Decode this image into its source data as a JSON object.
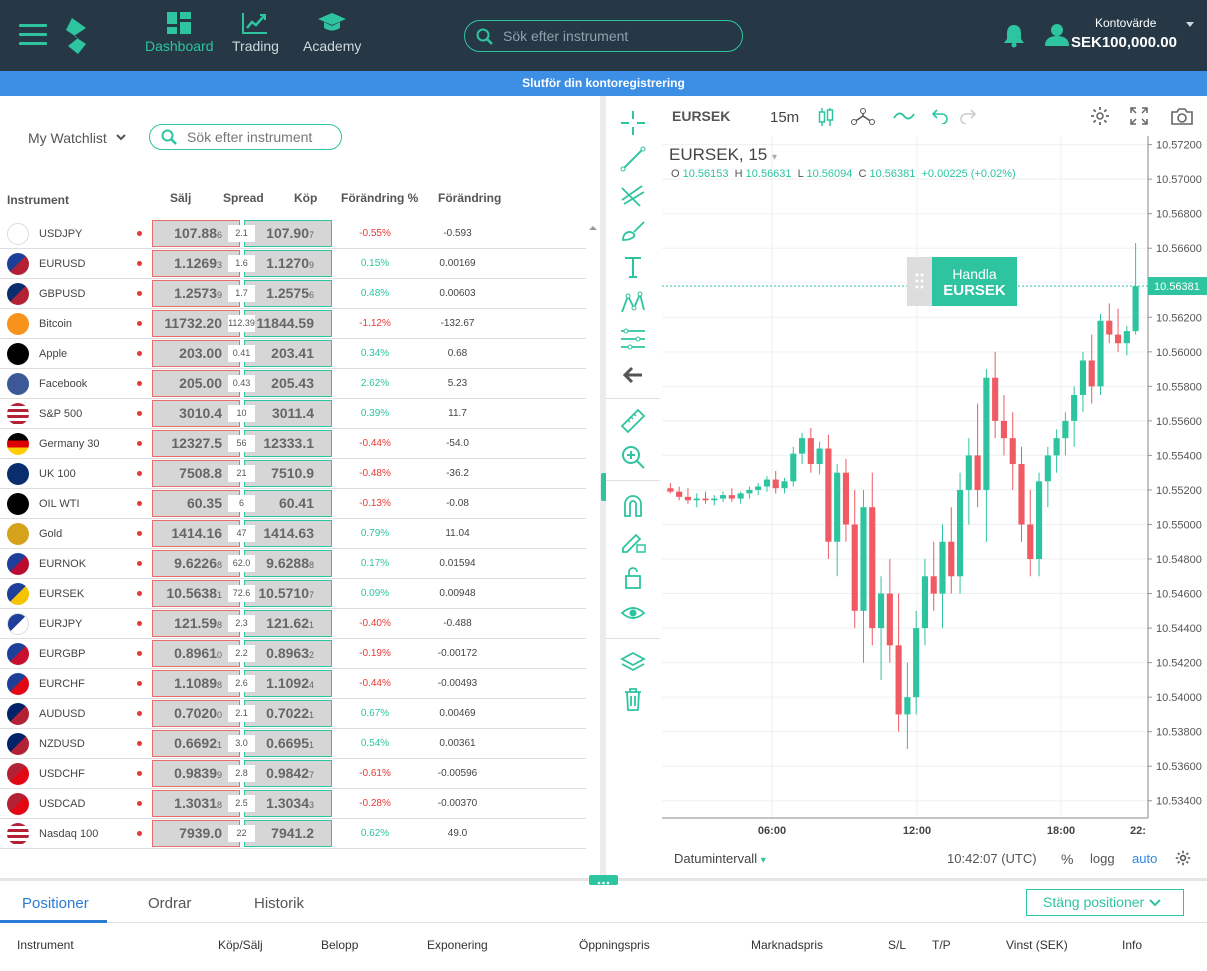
{
  "topbar": {
    "nav": [
      {
        "label": "Dashboard",
        "icon": "dashboard-icon",
        "active": true
      },
      {
        "label": "Trading",
        "icon": "trading-chart-icon",
        "active": false
      },
      {
        "label": "Academy",
        "icon": "graduation-cap-icon",
        "active": false
      }
    ],
    "search_placeholder": "Sök efter instrument",
    "account_label": "Kontovärde",
    "account_value": "SEK100,000.00"
  },
  "banner": "Slutför din kontoregistrering",
  "watchlist": {
    "title": "My Watchlist",
    "search_placeholder": "Sök efter instrument",
    "headers": {
      "instrument": "Instrument",
      "sell": "Sälj",
      "spread": "Spread",
      "buy": "Köp",
      "change_pct": "Förändring %",
      "change": "Förändring"
    },
    "rows": [
      {
        "name": "USDJPY",
        "flag": "japan-flag-icon",
        "sell": "107.88",
        "sell_pip": "6",
        "spread": "2.1",
        "buy": "107.90",
        "buy_pip": "7",
        "pct": "-0.55%",
        "chg": "-0.593",
        "dir": "neg"
      },
      {
        "name": "EURUSD",
        "flag": "eu-us-flag-icon",
        "sell": "1.1269",
        "sell_pip": "3",
        "spread": "1.6",
        "buy": "1.1270",
        "buy_pip": "9",
        "pct": "0.15%",
        "chg": "0.00169",
        "dir": "pos"
      },
      {
        "name": "GBPUSD",
        "flag": "uk-us-flag-icon",
        "sell": "1.2573",
        "sell_pip": "9",
        "spread": "1.7",
        "buy": "1.2575",
        "buy_pip": "6",
        "pct": "0.48%",
        "chg": "0.00603",
        "dir": "pos"
      },
      {
        "name": "Bitcoin",
        "flag": "bitcoin-icon",
        "sell": "11732.20",
        "sell_pip": "",
        "spread": "112.39",
        "buy": "11844.59",
        "buy_pip": "",
        "pct": "-1.12%",
        "chg": "-132.67",
        "dir": "neg"
      },
      {
        "name": "Apple",
        "flag": "apple-icon",
        "sell": "203.00",
        "sell_pip": "",
        "spread": "0.41",
        "buy": "203.41",
        "buy_pip": "",
        "pct": "0.34%",
        "chg": "0.68",
        "dir": "pos"
      },
      {
        "name": "Facebook",
        "flag": "facebook-icon",
        "sell": "205.00",
        "sell_pip": "",
        "spread": "0.43",
        "buy": "205.43",
        "buy_pip": "",
        "pct": "2.62%",
        "chg": "5.23",
        "dir": "pos"
      },
      {
        "name": "S&P 500",
        "flag": "us-flag-500-icon",
        "sell": "3010.4",
        "sell_pip": "",
        "spread": "10",
        "buy": "3011.4",
        "buy_pip": "",
        "pct": "0.39%",
        "chg": "11.7",
        "dir": "pos"
      },
      {
        "name": "Germany 30",
        "flag": "germany-flag-icon",
        "sell": "12327.5",
        "sell_pip": "",
        "spread": "56",
        "buy": "12333.1",
        "buy_pip": "",
        "pct": "-0.44%",
        "chg": "-54.0",
        "dir": "neg"
      },
      {
        "name": "UK 100",
        "flag": "uk-flag-icon",
        "sell": "7508.8",
        "sell_pip": "",
        "spread": "21",
        "buy": "7510.9",
        "buy_pip": "",
        "pct": "-0.48%",
        "chg": "-36.2",
        "dir": "neg"
      },
      {
        "name": "OIL WTI",
        "flag": "oil-drop-icon",
        "sell": "60.35",
        "sell_pip": "",
        "spread": "6",
        "buy": "60.41",
        "buy_pip": "",
        "pct": "-0.13%",
        "chg": "-0.08",
        "dir": "neg"
      },
      {
        "name": "Gold",
        "flag": "gold-bar-icon",
        "sell": "1414.16",
        "sell_pip": "",
        "spread": "47",
        "buy": "1414.63",
        "buy_pip": "",
        "pct": "0.79%",
        "chg": "11.04",
        "dir": "pos"
      },
      {
        "name": "EURNOK",
        "flag": "eu-norway-flag-icon",
        "sell": "9.6226",
        "sell_pip": "8",
        "spread": "62.0",
        "buy": "9.6288",
        "buy_pip": "8",
        "pct": "0.17%",
        "chg": "0.01594",
        "dir": "pos"
      },
      {
        "name": "EURSEK",
        "flag": "eu-sweden-flag-icon",
        "sell": "10.5638",
        "sell_pip": "1",
        "spread": "72.6",
        "buy": "10.5710",
        "buy_pip": "7",
        "pct": "0.09%",
        "chg": "0.00948",
        "dir": "pos"
      },
      {
        "name": "EURJPY",
        "flag": "eu-japan-flag-icon",
        "sell": "121.59",
        "sell_pip": "8",
        "spread": "2.3",
        "buy": "121.62",
        "buy_pip": "1",
        "pct": "-0.40%",
        "chg": "-0.488",
        "dir": "neg"
      },
      {
        "name": "EURGBP",
        "flag": "eu-uk-flag-icon",
        "sell": "0.8961",
        "sell_pip": "0",
        "spread": "2.2",
        "buy": "0.8963",
        "buy_pip": "2",
        "pct": "-0.19%",
        "chg": "-0.00172",
        "dir": "neg"
      },
      {
        "name": "EURCHF",
        "flag": "eu-swiss-flag-icon",
        "sell": "1.1089",
        "sell_pip": "8",
        "spread": "2.6",
        "buy": "1.1092",
        "buy_pip": "4",
        "pct": "-0.44%",
        "chg": "-0.00493",
        "dir": "neg"
      },
      {
        "name": "AUDUSD",
        "flag": "australia-us-flag-icon",
        "sell": "0.7020",
        "sell_pip": "0",
        "spread": "2.1",
        "buy": "0.7022",
        "buy_pip": "1",
        "pct": "0.67%",
        "chg": "0.00469",
        "dir": "pos"
      },
      {
        "name": "NZDUSD",
        "flag": "nz-us-flag-icon",
        "sell": "0.6692",
        "sell_pip": "1",
        "spread": "3.0",
        "buy": "0.6695",
        "buy_pip": "1",
        "pct": "0.54%",
        "chg": "0.00361",
        "dir": "pos"
      },
      {
        "name": "USDCHF",
        "flag": "us-swiss-flag-icon",
        "sell": "0.9839",
        "sell_pip": "9",
        "spread": "2.8",
        "buy": "0.9842",
        "buy_pip": "7",
        "pct": "-0.61%",
        "chg": "-0.00596",
        "dir": "neg"
      },
      {
        "name": "USDCAD",
        "flag": "us-canada-flag-icon",
        "sell": "1.3031",
        "sell_pip": "8",
        "spread": "2.5",
        "buy": "1.3034",
        "buy_pip": "3",
        "pct": "-0.28%",
        "chg": "-0.00370",
        "dir": "neg"
      },
      {
        "name": "Nasdaq 100",
        "flag": "us-flag-100-icon",
        "sell": "7939.0",
        "sell_pip": "",
        "spread": "22",
        "buy": "7941.2",
        "buy_pip": "",
        "pct": "0.62%",
        "chg": "49.0",
        "dir": "pos"
      }
    ]
  },
  "chart": {
    "symbol": "EURSEK",
    "timeframe": "15m",
    "legend_title": "EURSEK, 15",
    "ohlc": {
      "o_label": "O",
      "o": "10.56153",
      "h_label": "H",
      "h": "10.56631",
      "l_label": "L",
      "l": "10.56094",
      "c_label": "C",
      "c": "10.56381",
      "change": "+0.00225 (+0.02%)"
    },
    "trade_button": {
      "line1": "Handla",
      "line2": "EURSEK"
    },
    "current_price_label": "10.56381",
    "y_ticks": [
      "10.57200",
      "10.57000",
      "10.56800",
      "10.56600",
      "10.56400",
      "10.56200",
      "10.56000",
      "10.55800",
      "10.55600",
      "10.55400",
      "10.55200",
      "10.55000",
      "10.54800",
      "10.54600",
      "10.54400",
      "10.54200",
      "10.54000",
      "10.53800",
      "10.53600",
      "10.53400"
    ],
    "x_ticks": [
      "06:00",
      "12:00",
      "18:00",
      "22:"
    ],
    "date_range_label": "Datumintervall",
    "clock": "10:42:07 (UTC)",
    "pct_label": "%",
    "log_label": "logg",
    "auto_label": "auto"
  },
  "chart_data": {
    "type": "candlestick",
    "title": "EURSEK, 15",
    "ylim": [
      10.533,
      10.5725
    ],
    "x_ticks": [
      "06:00",
      "12:00",
      "18:00",
      "22:"
    ],
    "candles_approx": [
      [
        10.5521,
        10.5524,
        10.5518,
        10.5519
      ],
      [
        10.5519,
        10.5522,
        10.5514,
        10.5516
      ],
      [
        10.5516,
        10.5521,
        10.5512,
        10.5514
      ],
      [
        10.5514,
        10.5518,
        10.551,
        10.5515
      ],
      [
        10.5515,
        10.5519,
        10.5512,
        10.5514
      ],
      [
        10.5514,
        10.5517,
        10.5511,
        10.5515
      ],
      [
        10.5515,
        10.5519,
        10.5513,
        10.5517
      ],
      [
        10.5517,
        10.5521,
        10.5513,
        10.5515
      ],
      [
        10.5515,
        10.5519,
        10.5512,
        10.5518
      ],
      [
        10.5518,
        10.5522,
        10.5515,
        10.552
      ],
      [
        10.552,
        10.5524,
        10.5517,
        10.5522
      ],
      [
        10.5522,
        10.5528,
        10.5519,
        10.5526
      ],
      [
        10.5526,
        10.5531,
        10.5518,
        10.5521
      ],
      [
        10.5521,
        10.5527,
        10.5518,
        10.5525
      ],
      [
        10.5525,
        10.5545,
        10.5522,
        10.5541
      ],
      [
        10.5541,
        10.5553,
        10.5535,
        10.555
      ],
      [
        10.555,
        10.5556,
        10.553,
        10.5535
      ],
      [
        10.5535,
        10.5548,
        10.5529,
        10.5544
      ],
      [
        10.5544,
        10.5552,
        10.548,
        10.549
      ],
      [
        10.549,
        10.5535,
        10.547,
        10.553
      ],
      [
        10.553,
        10.5538,
        10.549,
        10.55
      ],
      [
        10.55,
        10.552,
        10.544,
        10.545
      ],
      [
        10.545,
        10.552,
        10.542,
        10.551
      ],
      [
        10.551,
        10.553,
        10.543,
        10.544
      ],
      [
        10.544,
        10.547,
        10.541,
        10.546
      ],
      [
        10.546,
        10.548,
        10.542,
        10.543
      ],
      [
        10.543,
        10.546,
        10.538,
        10.539
      ],
      [
        10.539,
        10.542,
        10.537,
        10.54
      ],
      [
        10.54,
        10.545,
        10.539,
        10.544
      ],
      [
        10.544,
        10.548,
        10.543,
        10.547
      ],
      [
        10.547,
        10.549,
        10.545,
        10.546
      ],
      [
        10.546,
        10.55,
        10.544,
        10.549
      ],
      [
        10.549,
        10.551,
        10.546,
        10.547
      ],
      [
        10.547,
        10.553,
        10.546,
        10.552
      ],
      [
        10.552,
        10.555,
        10.55,
        10.554
      ],
      [
        10.554,
        10.557,
        10.551,
        10.552
      ],
      [
        10.552,
        10.559,
        10.549,
        10.5585
      ],
      [
        10.5585,
        10.56,
        10.555,
        10.556
      ],
      [
        10.556,
        10.5575,
        10.554,
        10.555
      ],
      [
        10.555,
        10.5565,
        10.552,
        10.5535
      ],
      [
        10.5535,
        10.5545,
        10.549,
        10.55
      ],
      [
        10.55,
        10.552,
        10.547,
        10.548
      ],
      [
        10.548,
        10.553,
        10.547,
        10.5525
      ],
      [
        10.5525,
        10.5545,
        10.551,
        10.554
      ],
      [
        10.554,
        10.5555,
        10.553,
        10.555
      ],
      [
        10.555,
        10.5565,
        10.554,
        10.556
      ],
      [
        10.556,
        10.558,
        10.5545,
        10.5575
      ],
      [
        10.5575,
        10.56,
        10.5565,
        10.5595
      ],
      [
        10.5595,
        10.561,
        10.557,
        10.558
      ],
      [
        10.558,
        10.5622,
        10.5575,
        10.5618
      ],
      [
        10.5618,
        10.5628,
        10.5605,
        10.561
      ],
      [
        10.561,
        10.5625,
        10.56,
        10.5605
      ],
      [
        10.5605,
        10.5615,
        10.5598,
        10.5612
      ],
      [
        10.5612,
        10.5663,
        10.561,
        10.5638
      ]
    ]
  },
  "bottom": {
    "tabs": [
      {
        "label": "Positioner",
        "active": true
      },
      {
        "label": "Ordrar",
        "active": false
      },
      {
        "label": "Historik",
        "active": false
      }
    ],
    "close_label": "Stäng positioner",
    "columns": [
      "Instrument",
      "Köp/Sälj",
      "Belopp",
      "Exponering",
      "Öppningspris",
      "Marknadspris",
      "S/L",
      "T/P",
      "Vinst (SEK)",
      "Info"
    ]
  },
  "colors": {
    "accent": "#2ec4a0",
    "header_bg": "#263846",
    "banner": "#3d8fe6",
    "up": "#2ec4a0",
    "down": "#ef5a63",
    "sell_border": "#e86d6d",
    "link": "#2f86e0"
  }
}
